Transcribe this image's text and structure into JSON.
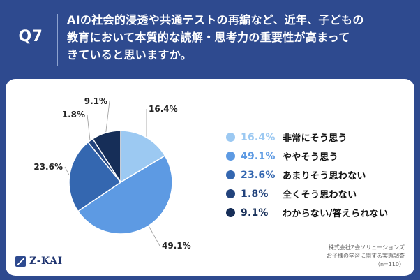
{
  "header": {
    "question_label": "Q7",
    "question_lines": [
      "AIの社会的浸透や共通テストの再編など、近年、子どもの",
      "教育において本質的な読解・思考力の重要性が高まって",
      "きていると思いますか。"
    ]
  },
  "chart_data": {
    "type": "pie",
    "title": "",
    "slices": [
      {
        "label": "非常にそう思う",
        "value": 16.4,
        "value_label": "16.4%",
        "color": "#9cc9f2"
      },
      {
        "label": "ややそう思う",
        "value": 49.1,
        "value_label": "49.1%",
        "color": "#5d9ae3"
      },
      {
        "label": "あまりそう思わない",
        "value": 23.6,
        "value_label": "23.6%",
        "color": "#3467b0"
      },
      {
        "label": "全くそう思わない",
        "value": 1.8,
        "value_label": "1.8%",
        "color": "#22437c"
      },
      {
        "label": "わからない/答えられない",
        "value": 9.1,
        "value_label": "9.1%",
        "color": "#162e58"
      }
    ],
    "start_angle_deg": 0,
    "direction": "clockwise",
    "legend_position": "right"
  },
  "footer": {
    "logo_text": "Z-KAI",
    "source_lines": [
      "株式会社Z会ソリューションズ",
      "お子様の学習に関する実態調査",
      "（n=110）"
    ]
  },
  "colors": {
    "header_bg": "#2e4a8f",
    "panel_bg": "#ffffff"
  }
}
